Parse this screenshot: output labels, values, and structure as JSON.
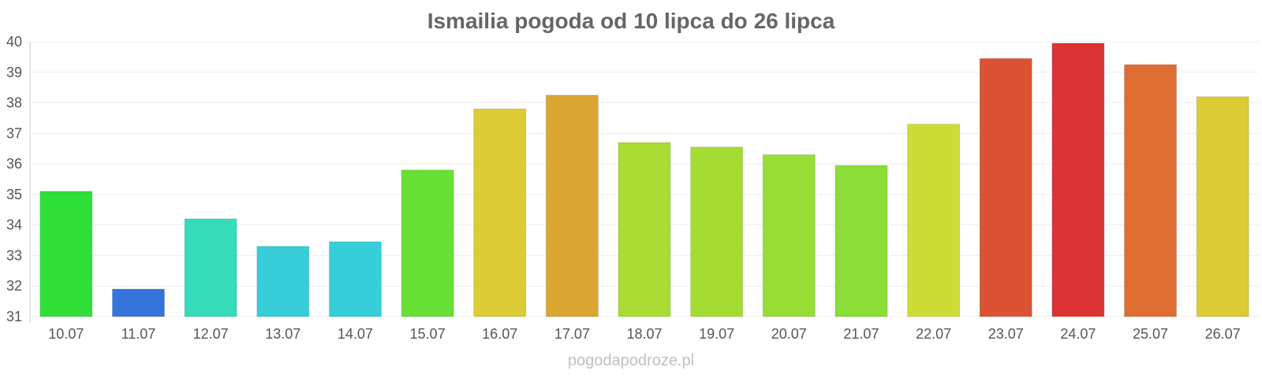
{
  "chart_data": {
    "type": "bar",
    "title": "Ismailia pogoda od 10 lipca do 26 lipca",
    "xlabel": "",
    "ylabel": "",
    "categories": [
      "10.07",
      "11.07",
      "12.07",
      "13.07",
      "14.07",
      "15.07",
      "16.07",
      "17.07",
      "18.07",
      "19.07",
      "20.07",
      "21.07",
      "22.07",
      "23.07",
      "24.07",
      "25.07",
      "26.07"
    ],
    "values": [
      35.1,
      31.9,
      34.2,
      33.3,
      33.45,
      35.8,
      37.8,
      38.25,
      36.7,
      36.55,
      36.3,
      35.95,
      37.3,
      39.45,
      39.95,
      39.25,
      38.2
    ],
    "colors": [
      "#2fdf38",
      "#3574dc",
      "#34dcbb",
      "#36cdd9",
      "#36cfd9",
      "#68e035",
      "#dccb33",
      "#dca632",
      "#aadc33",
      "#a4dc33",
      "#97dd34",
      "#8ade35",
      "#cddd35",
      "#dd5233",
      "#dc3333",
      "#de6d34",
      "#dccb33"
    ],
    "ylim": [
      31,
      40
    ],
    "yticks": [
      31,
      32,
      33,
      34,
      35,
      36,
      37,
      38,
      39,
      40
    ],
    "grid": true,
    "legend": "none"
  },
  "watermark": "pogodapodroze.pl"
}
